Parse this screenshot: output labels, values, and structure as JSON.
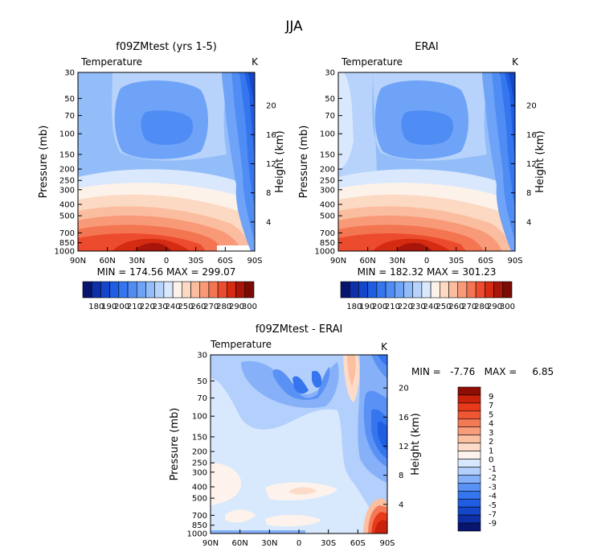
{
  "page_title": "JJA",
  "temp_colors": [
    "#08156e",
    "#0d2fa8",
    "#1446c9",
    "#1f5de3",
    "#3575ee",
    "#4f8cf4",
    "#6fa3f7",
    "#93bdf9",
    "#b7d3fb",
    "#d9e8fd",
    "#fdf2ea",
    "#fcd9c3",
    "#fbbd9f",
    "#f89a78",
    "#f47552",
    "#ec4c2d",
    "#d42b12",
    "#a8150a",
    "#7a0a04"
  ],
  "diff_colors": [
    "#08156e",
    "#0d2fa8",
    "#1446c9",
    "#1f5de3",
    "#3575ee",
    "#5a91f4",
    "#86b0f8",
    "#b3cffb",
    "#d8e8fd",
    "#fdf3ec",
    "#fcdcc8",
    "#fbbfa2",
    "#f89d7c",
    "#f47a57",
    "#ef5634",
    "#e63a1a",
    "#c9210c",
    "#8e0d04"
  ],
  "icons": {
    "colorbar": "colorbar-legend",
    "contour": "filled-contour-map"
  },
  "chart_data": [
    {
      "type": "heatmap",
      "title": "f09ZMtest (yrs 1-5)",
      "field_label": "Temperature",
      "units": "K",
      "ylabel": "Pressure (mb)",
      "y2label": "Height (km)",
      "x_ticks": [
        "90N",
        "60N",
        "30N",
        "0",
        "30S",
        "60S",
        "90S"
      ],
      "y_ticks": [
        "30",
        "50",
        "70",
        "100",
        "150",
        "200",
        "250",
        "300",
        "400",
        "500",
        "700",
        "850",
        "1000"
      ],
      "y2_ticks": [
        "20",
        "16",
        "12",
        "8",
        "4"
      ],
      "stats": "MIN = 174.56   MAX = 299.07",
      "colorbar_labels": [
        "180",
        "190",
        "200",
        "210",
        "220",
        "230",
        "240",
        "250",
        "260",
        "270",
        "280",
        "290",
        "300"
      ],
      "colorbar_orientation": "horizontal"
    },
    {
      "type": "heatmap",
      "title": "ERAI",
      "field_label": "Temperature",
      "units": "K",
      "ylabel": "Pressure (mb)",
      "y2label": "Height (km)",
      "x_ticks": [
        "90N",
        "60N",
        "30N",
        "0",
        "30S",
        "60S",
        "90S"
      ],
      "y_ticks": [
        "30",
        "50",
        "70",
        "100",
        "150",
        "200",
        "250",
        "300",
        "400",
        "500",
        "700",
        "850",
        "1000"
      ],
      "y2_ticks": [
        "20",
        "16",
        "12",
        "8",
        "4"
      ],
      "stats": "MIN = 182.32   MAX = 301.23",
      "colorbar_labels": [
        "180",
        "190",
        "200",
        "210",
        "220",
        "230",
        "240",
        "250",
        "260",
        "270",
        "280",
        "290",
        "300"
      ],
      "colorbar_orientation": "horizontal"
    },
    {
      "type": "heatmap",
      "title": "f09ZMtest - ERAI",
      "field_label": "Temperature",
      "units": "K",
      "ylabel": "Pressure (mb)",
      "y2label": "Height (km)",
      "x_ticks": [
        "90N",
        "60N",
        "30N",
        "0",
        "30S",
        "60S",
        "90S"
      ],
      "y_ticks": [
        "30",
        "50",
        "70",
        "100",
        "150",
        "200",
        "250",
        "300",
        "400",
        "500",
        "700",
        "850",
        "1000"
      ],
      "y2_ticks": [
        "20",
        "16",
        "12",
        "8",
        "4"
      ],
      "stats": "MIN =   -7.76   MAX =     6.85",
      "colorbar_labels": [
        "9",
        "7",
        "5",
        "4",
        "3",
        "2",
        "1",
        "0",
        "-1",
        "-2",
        "-3",
        "-4",
        "-5",
        "-7",
        "-9"
      ],
      "colorbar_orientation": "vertical"
    }
  ]
}
